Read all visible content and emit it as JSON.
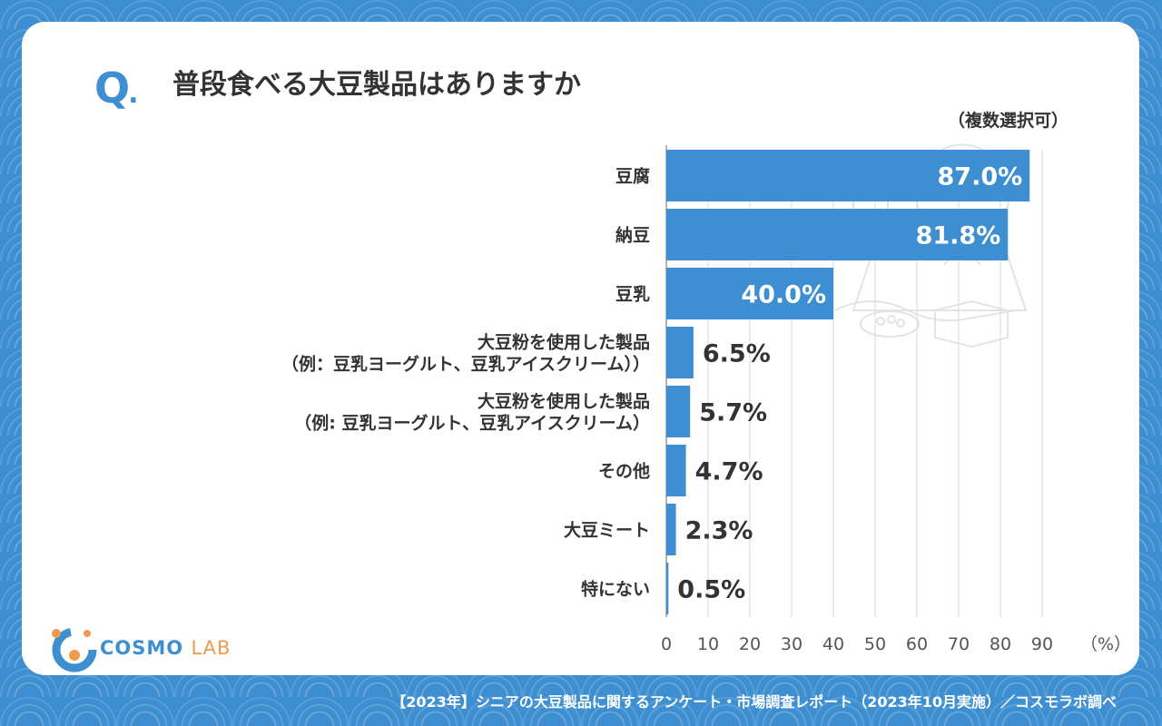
{
  "question": {
    "mark": "Q",
    "dot": ".",
    "text": "普段食べる大豆製品はありますか"
  },
  "note": "（複数選択可）",
  "logo": {
    "brand": "COSMO",
    "lab": "LAB"
  },
  "footer": "【2023年】シニアの大豆製品に関するアンケート・市場調査レポート（2023年10月実施）／コスモラボ調べ",
  "colors": {
    "bar": "#3d8fd1",
    "background": "#3d8fd1",
    "text": "#333333",
    "grid": "#d9d9d9",
    "accent": "#ef9a4f"
  },
  "chart_data": {
    "type": "bar",
    "orientation": "horizontal",
    "categories": [
      [
        "豆腐"
      ],
      [
        "納豆"
      ],
      [
        "豆乳"
      ],
      [
        "大豆粉を使用した製品",
        "（例：豆乳ヨーグルト、豆乳アイスクリーム））"
      ],
      [
        "大豆粉を使用した製品",
        "（例: 豆乳ヨーグルト、豆乳アイスクリーム）"
      ],
      [
        "その他"
      ],
      [
        "大豆ミート"
      ],
      [
        "特にない"
      ]
    ],
    "values": [
      87.0,
      81.8,
      40.0,
      6.5,
      5.7,
      4.7,
      2.3,
      0.5
    ],
    "value_labels": [
      "87.0%",
      "81.8%",
      "40.0%",
      "6.5%",
      "5.7%",
      "4.7%",
      "2.3%",
      "0.5%"
    ],
    "xlim": [
      0,
      90
    ],
    "xticks": [
      0,
      10,
      20,
      30,
      40,
      50,
      60,
      70,
      80,
      90
    ],
    "xunit": "（%）",
    "grid": true
  }
}
